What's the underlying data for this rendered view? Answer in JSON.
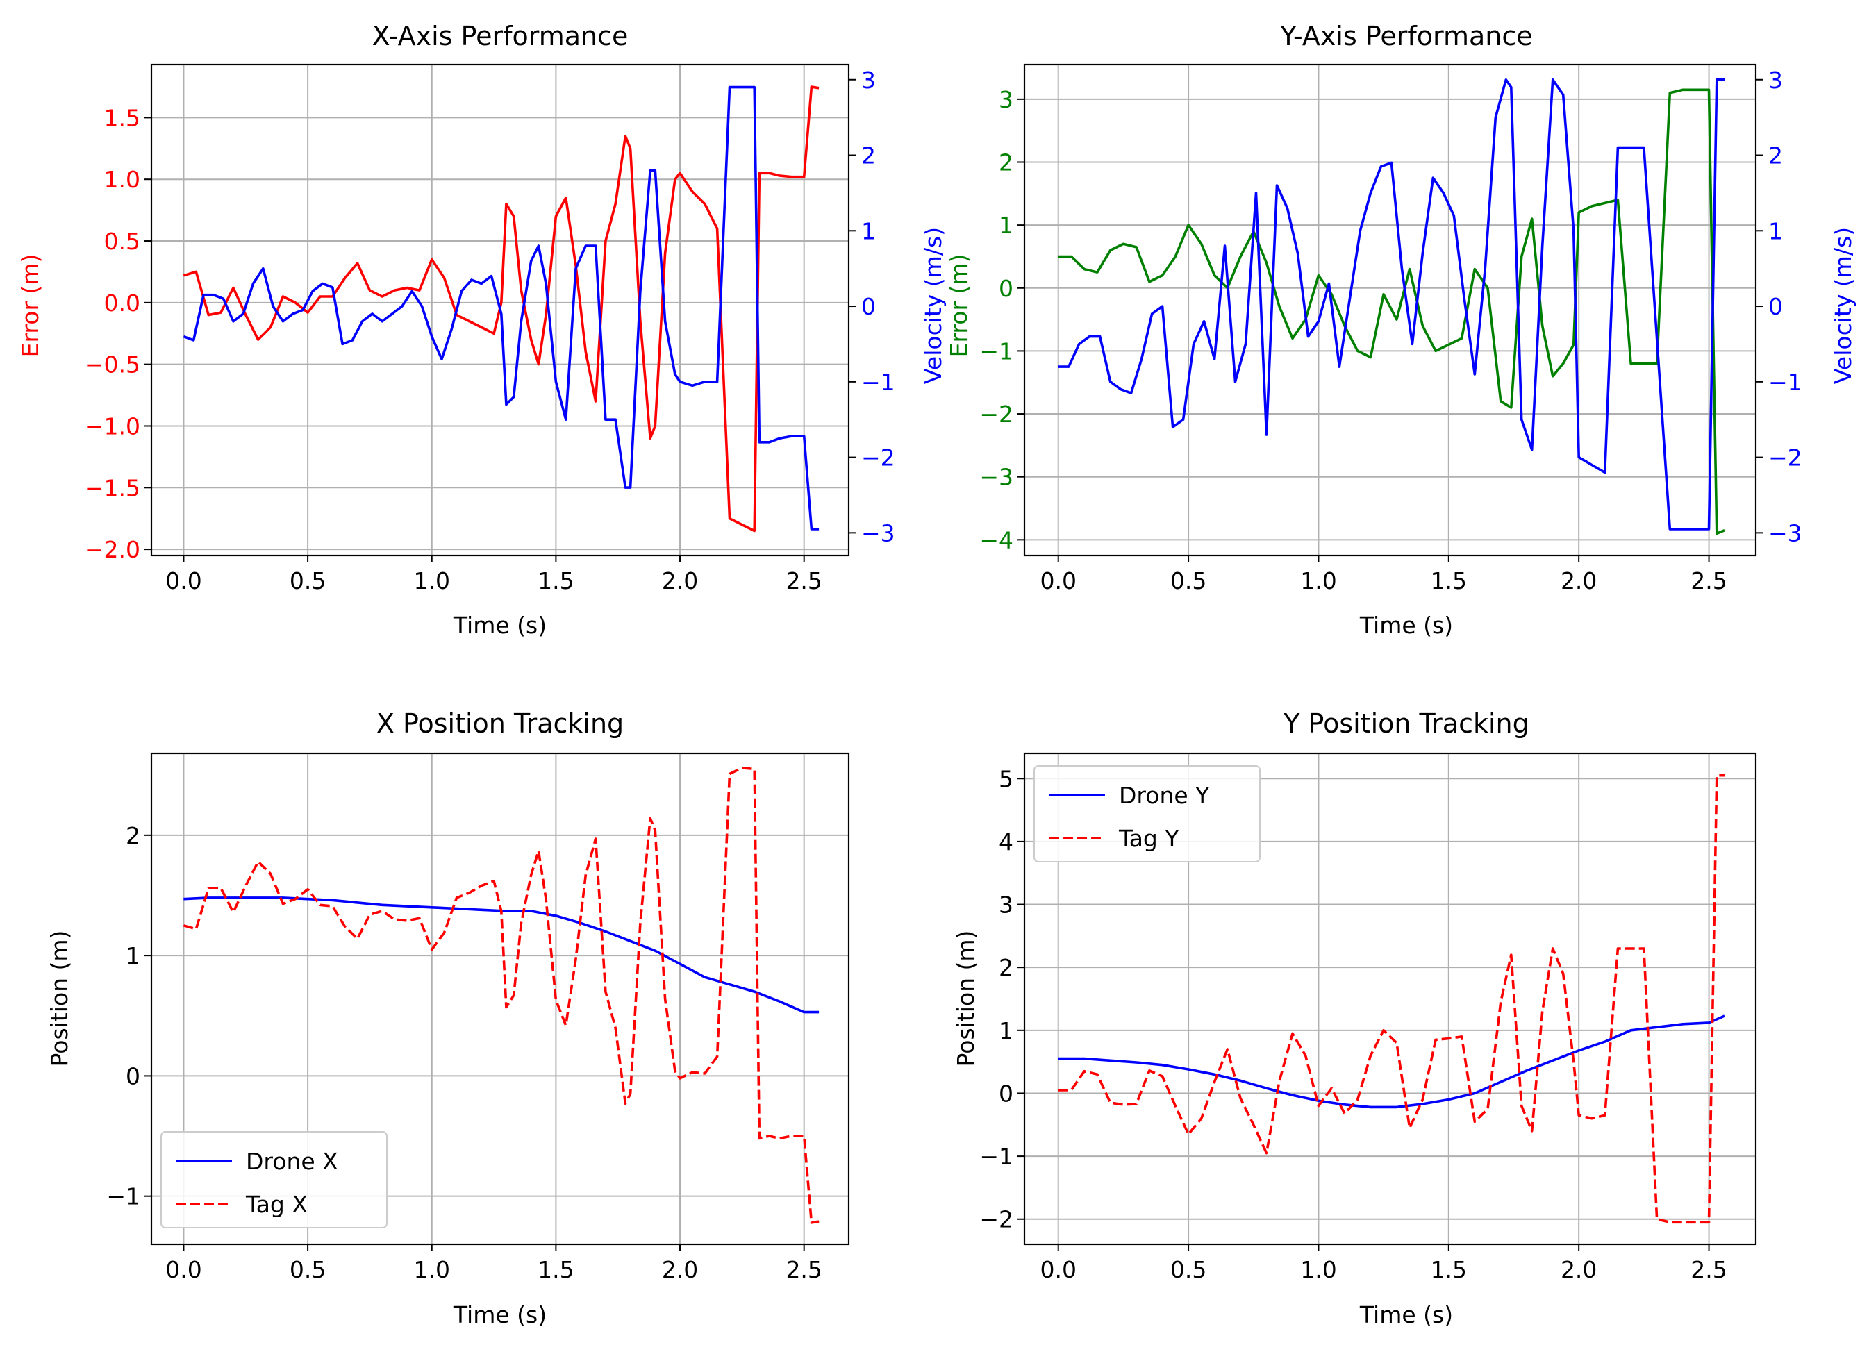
{
  "colors": {
    "red": "#ff0000",
    "blue": "#0000ff",
    "green": "#008000"
  },
  "chart_data": [
    {
      "type": "line",
      "title": "X-Axis Performance",
      "xlabel": "Time (s)",
      "ylabel": "Error (m)",
      "y2label": "Velocity (m/s)",
      "xlim": [
        -0.13,
        2.68
      ],
      "ylim": [
        -2.05,
        1.93
      ],
      "y2lim": [
        -3.3,
        3.2
      ],
      "xticks": [
        "0.0",
        "0.5",
        "1.0",
        "1.5",
        "2.0",
        "2.5"
      ],
      "yticks": [
        "−2.0",
        "−1.5",
        "−1.0",
        "−0.5",
        "0.0",
        "0.5",
        "1.0",
        "1.5"
      ],
      "y2ticks": [
        "−3",
        "−2",
        "−1",
        "0",
        "1",
        "2",
        "3"
      ],
      "grid": true,
      "series": [
        {
          "axis": "left",
          "color": "#ff0000",
          "style": "solid",
          "x": [
            0.0,
            0.05,
            0.1,
            0.15,
            0.2,
            0.25,
            0.3,
            0.35,
            0.4,
            0.45,
            0.5,
            0.55,
            0.6,
            0.65,
            0.7,
            0.75,
            0.8,
            0.85,
            0.9,
            0.95,
            1.0,
            1.05,
            1.1,
            1.15,
            1.2,
            1.25,
            1.28,
            1.3,
            1.33,
            1.36,
            1.4,
            1.43,
            1.46,
            1.5,
            1.54,
            1.58,
            1.62,
            1.66,
            1.7,
            1.74,
            1.78,
            1.8,
            1.84,
            1.88,
            1.9,
            1.94,
            1.98,
            2.0,
            2.05,
            2.1,
            2.15,
            2.2,
            2.25,
            2.3,
            2.32,
            2.36,
            2.4,
            2.45,
            2.5,
            2.53,
            2.56
          ],
          "y": [
            0.22,
            0.25,
            -0.1,
            -0.08,
            0.12,
            -0.1,
            -0.3,
            -0.2,
            0.05,
            0.0,
            -0.08,
            0.05,
            0.05,
            0.2,
            0.32,
            0.1,
            0.05,
            0.1,
            0.12,
            0.1,
            0.35,
            0.2,
            -0.1,
            -0.15,
            -0.2,
            -0.25,
            0.0,
            0.8,
            0.7,
            0.1,
            -0.3,
            -0.5,
            -0.1,
            0.7,
            0.85,
            0.3,
            -0.4,
            -0.8,
            0.5,
            0.8,
            1.35,
            1.25,
            -0.15,
            -1.1,
            -1.0,
            0.4,
            1.0,
            1.05,
            0.9,
            0.8,
            0.6,
            -1.75,
            -1.8,
            -1.85,
            1.05,
            1.05,
            1.03,
            1.02,
            1.02,
            1.75,
            1.74
          ]
        },
        {
          "axis": "right",
          "color": "#0000ff",
          "style": "solid",
          "x": [
            0.0,
            0.04,
            0.08,
            0.12,
            0.16,
            0.2,
            0.24,
            0.28,
            0.32,
            0.36,
            0.4,
            0.44,
            0.48,
            0.52,
            0.56,
            0.6,
            0.64,
            0.68,
            0.72,
            0.76,
            0.8,
            0.84,
            0.88,
            0.92,
            0.96,
            1.0,
            1.04,
            1.08,
            1.12,
            1.16,
            1.2,
            1.24,
            1.28,
            1.3,
            1.33,
            1.36,
            1.4,
            1.43,
            1.46,
            1.5,
            1.54,
            1.58,
            1.62,
            1.66,
            1.7,
            1.74,
            1.78,
            1.8,
            1.84,
            1.88,
            1.9,
            1.94,
            1.98,
            2.0,
            2.05,
            2.1,
            2.15,
            2.2,
            2.25,
            2.3,
            2.32,
            2.36,
            2.4,
            2.45,
            2.5,
            2.53,
            2.56
          ],
          "y": [
            -0.4,
            -0.45,
            0.15,
            0.15,
            0.1,
            -0.2,
            -0.1,
            0.3,
            0.5,
            0.0,
            -0.2,
            -0.1,
            -0.05,
            0.2,
            0.3,
            0.25,
            -0.5,
            -0.45,
            -0.2,
            -0.1,
            -0.2,
            -0.1,
            0.0,
            0.2,
            0.0,
            -0.4,
            -0.7,
            -0.3,
            0.2,
            0.35,
            0.3,
            0.4,
            -0.1,
            -1.3,
            -1.2,
            -0.2,
            0.6,
            0.8,
            0.3,
            -1.0,
            -1.5,
            0.5,
            0.8,
            0.8,
            -1.5,
            -1.5,
            -2.4,
            -2.4,
            0.2,
            1.8,
            1.8,
            -0.2,
            -0.9,
            -1.0,
            -1.05,
            -1.0,
            -1.0,
            2.9,
            2.9,
            2.9,
            -1.8,
            -1.8,
            -1.75,
            -1.72,
            -1.72,
            -2.95,
            -2.95
          ]
        }
      ]
    },
    {
      "type": "line",
      "title": "Y-Axis Performance",
      "xlabel": "Time (s)",
      "ylabel": "Error (m)",
      "y2label": "Velocity (m/s)",
      "xlim": [
        -0.13,
        2.68
      ],
      "ylim": [
        -4.25,
        3.55
      ],
      "y2lim": [
        -3.3,
        3.2
      ],
      "xticks": [
        "0.0",
        "0.5",
        "1.0",
        "1.5",
        "2.0",
        "2.5"
      ],
      "yticks": [
        "−4",
        "−3",
        "−2",
        "−1",
        "0",
        "1",
        "2",
        "3"
      ],
      "y2ticks": [
        "−3",
        "−2",
        "−1",
        "0",
        "1",
        "2",
        "3"
      ],
      "grid": true,
      "series": [
        {
          "axis": "left",
          "color": "#008000",
          "style": "solid",
          "x": [
            0.0,
            0.05,
            0.1,
            0.15,
            0.2,
            0.25,
            0.3,
            0.35,
            0.4,
            0.45,
            0.5,
            0.55,
            0.6,
            0.65,
            0.7,
            0.75,
            0.8,
            0.85,
            0.9,
            0.95,
            1.0,
            1.05,
            1.1,
            1.15,
            1.2,
            1.25,
            1.3,
            1.35,
            1.4,
            1.45,
            1.5,
            1.55,
            1.6,
            1.65,
            1.7,
            1.74,
            1.78,
            1.82,
            1.86,
            1.9,
            1.94,
            1.98,
            2.0,
            2.05,
            2.1,
            2.15,
            2.2,
            2.25,
            2.3,
            2.35,
            2.4,
            2.45,
            2.5,
            2.53,
            2.56
          ],
          "y": [
            0.5,
            0.5,
            0.3,
            0.25,
            0.6,
            0.7,
            0.65,
            0.1,
            0.2,
            0.5,
            1.0,
            0.7,
            0.2,
            0.0,
            0.5,
            0.9,
            0.4,
            -0.3,
            -0.8,
            -0.5,
            0.2,
            -0.1,
            -0.6,
            -1.0,
            -1.1,
            -0.1,
            -0.5,
            0.3,
            -0.6,
            -1.0,
            -0.9,
            -0.8,
            0.3,
            0.0,
            -1.8,
            -1.9,
            0.5,
            1.1,
            -0.6,
            -1.4,
            -1.2,
            -0.9,
            1.2,
            1.3,
            1.35,
            1.4,
            -1.2,
            -1.2,
            -1.2,
            3.1,
            3.15,
            3.15,
            3.15,
            -3.9,
            -3.85
          ]
        },
        {
          "axis": "right",
          "color": "#0000ff",
          "style": "solid",
          "x": [
            0.0,
            0.04,
            0.08,
            0.12,
            0.16,
            0.2,
            0.24,
            0.28,
            0.32,
            0.36,
            0.4,
            0.44,
            0.48,
            0.52,
            0.56,
            0.6,
            0.64,
            0.68,
            0.72,
            0.76,
            0.8,
            0.84,
            0.88,
            0.92,
            0.96,
            1.0,
            1.04,
            1.08,
            1.12,
            1.16,
            1.2,
            1.24,
            1.28,
            1.32,
            1.36,
            1.4,
            1.44,
            1.48,
            1.52,
            1.56,
            1.6,
            1.64,
            1.68,
            1.72,
            1.74,
            1.78,
            1.82,
            1.86,
            1.9,
            1.94,
            1.98,
            2.0,
            2.05,
            2.1,
            2.15,
            2.2,
            2.25,
            2.35,
            2.4,
            2.45,
            2.5,
            2.53,
            2.56
          ],
          "y": [
            -0.8,
            -0.8,
            -0.5,
            -0.4,
            -0.4,
            -1.0,
            -1.1,
            -1.15,
            -0.7,
            -0.1,
            0.0,
            -1.6,
            -1.5,
            -0.5,
            -0.2,
            -0.7,
            0.8,
            -1.0,
            -0.5,
            1.5,
            -1.7,
            1.6,
            1.3,
            0.7,
            -0.4,
            -0.2,
            0.3,
            -0.8,
            0.1,
            1.0,
            1.5,
            1.85,
            1.9,
            0.5,
            -0.5,
            0.7,
            1.7,
            1.5,
            1.2,
            0.1,
            -0.9,
            0.5,
            2.5,
            3.0,
            2.9,
            -1.5,
            -1.9,
            0.8,
            3.0,
            2.8,
            1.0,
            -2.0,
            -2.1,
            -2.2,
            2.1,
            2.1,
            2.1,
            -2.95,
            -2.95,
            -2.95,
            -2.95,
            3.0,
            3.0
          ]
        }
      ]
    },
    {
      "type": "line",
      "title": "X Position Tracking",
      "xlabel": "Time (s)",
      "ylabel": "Position (m)",
      "xlim": [
        -0.13,
        2.68
      ],
      "ylim": [
        -1.4,
        2.68
      ],
      "xticks": [
        "0.0",
        "0.5",
        "1.0",
        "1.5",
        "2.0",
        "2.5"
      ],
      "yticks": [
        "−1",
        "0",
        "1",
        "2"
      ],
      "grid": true,
      "legend": {
        "position": "lower-left",
        "entries": [
          "Drone X",
          "Tag X"
        ]
      },
      "series": [
        {
          "name": "Drone X",
          "color": "#0000ff",
          "style": "solid",
          "x": [
            0.0,
            0.1,
            0.2,
            0.3,
            0.4,
            0.5,
            0.6,
            0.7,
            0.8,
            0.9,
            1.0,
            1.1,
            1.2,
            1.3,
            1.4,
            1.5,
            1.6,
            1.7,
            1.8,
            1.9,
            2.0,
            2.1,
            2.2,
            2.3,
            2.4,
            2.5,
            2.56
          ],
          "y": [
            1.47,
            1.48,
            1.48,
            1.48,
            1.48,
            1.47,
            1.46,
            1.44,
            1.42,
            1.41,
            1.4,
            1.39,
            1.38,
            1.37,
            1.37,
            1.33,
            1.27,
            1.2,
            1.12,
            1.04,
            0.93,
            0.82,
            0.76,
            0.7,
            0.62,
            0.53,
            0.53
          ]
        },
        {
          "name": "Tag X",
          "color": "#ff0000",
          "style": "dashed",
          "x": [
            0.0,
            0.05,
            0.1,
            0.15,
            0.2,
            0.25,
            0.3,
            0.35,
            0.4,
            0.45,
            0.5,
            0.55,
            0.6,
            0.65,
            0.7,
            0.75,
            0.8,
            0.85,
            0.9,
            0.95,
            1.0,
            1.05,
            1.1,
            1.15,
            1.2,
            1.25,
            1.28,
            1.3,
            1.33,
            1.36,
            1.4,
            1.43,
            1.46,
            1.5,
            1.54,
            1.58,
            1.62,
            1.66,
            1.7,
            1.74,
            1.78,
            1.8,
            1.84,
            1.88,
            1.9,
            1.94,
            1.98,
            2.0,
            2.05,
            2.1,
            2.15,
            2.2,
            2.25,
            2.3,
            2.32,
            2.36,
            2.4,
            2.45,
            2.5,
            2.53,
            2.56
          ],
          "y": [
            1.25,
            1.22,
            1.56,
            1.56,
            1.36,
            1.58,
            1.78,
            1.68,
            1.43,
            1.47,
            1.55,
            1.42,
            1.41,
            1.24,
            1.14,
            1.34,
            1.37,
            1.3,
            1.29,
            1.31,
            1.05,
            1.19,
            1.48,
            1.52,
            1.58,
            1.62,
            1.37,
            0.57,
            0.67,
            1.27,
            1.67,
            1.87,
            1.47,
            0.63,
            0.42,
            0.97,
            1.67,
            1.97,
            0.7,
            0.4,
            -0.23,
            -0.15,
            1.27,
            2.14,
            2.04,
            0.64,
            0.04,
            -0.02,
            0.03,
            0.02,
            0.16,
            2.51,
            2.56,
            2.55,
            -0.52,
            -0.5,
            -0.52,
            -0.5,
            -0.5,
            -1.22,
            -1.21
          ]
        }
      ]
    },
    {
      "type": "line",
      "title": "Y Position Tracking",
      "xlabel": "Time (s)",
      "ylabel": "Position (m)",
      "xlim": [
        -0.13,
        2.68
      ],
      "ylim": [
        -2.4,
        5.4
      ],
      "xticks": [
        "0.0",
        "0.5",
        "1.0",
        "1.5",
        "2.0",
        "2.5"
      ],
      "yticks": [
        "−2",
        "−1",
        "0",
        "1",
        "2",
        "3",
        "4",
        "5"
      ],
      "grid": true,
      "legend": {
        "position": "upper-left",
        "entries": [
          "Drone Y",
          "Tag Y"
        ]
      },
      "series": [
        {
          "name": "Drone Y",
          "color": "#0000ff",
          "style": "solid",
          "x": [
            0.0,
            0.1,
            0.2,
            0.3,
            0.4,
            0.5,
            0.6,
            0.7,
            0.8,
            0.9,
            1.0,
            1.1,
            1.2,
            1.3,
            1.4,
            1.5,
            1.6,
            1.7,
            1.8,
            1.9,
            2.0,
            2.1,
            2.2,
            2.3,
            2.4,
            2.5,
            2.56
          ],
          "y": [
            0.55,
            0.55,
            0.52,
            0.49,
            0.45,
            0.38,
            0.3,
            0.2,
            0.08,
            -0.03,
            -0.12,
            -0.18,
            -0.22,
            -0.22,
            -0.17,
            -0.1,
            0.0,
            0.18,
            0.36,
            0.52,
            0.68,
            0.82,
            1.0,
            1.05,
            1.1,
            1.12,
            1.23
          ]
        },
        {
          "name": "Tag Y",
          "color": "#ff0000",
          "style": "dashed",
          "x": [
            0.0,
            0.05,
            0.1,
            0.15,
            0.2,
            0.25,
            0.3,
            0.35,
            0.4,
            0.45,
            0.5,
            0.55,
            0.6,
            0.65,
            0.7,
            0.75,
            0.8,
            0.85,
            0.9,
            0.95,
            1.0,
            1.05,
            1.1,
            1.15,
            1.2,
            1.25,
            1.3,
            1.35,
            1.4,
            1.45,
            1.5,
            1.55,
            1.6,
            1.65,
            1.7,
            1.74,
            1.78,
            1.82,
            1.86,
            1.9,
            1.94,
            1.98,
            2.0,
            2.05,
            2.1,
            2.15,
            2.2,
            2.25,
            2.3,
            2.35,
            2.4,
            2.45,
            2.5,
            2.53,
            2.56
          ],
          "y": [
            0.05,
            0.05,
            0.35,
            0.3,
            -0.15,
            -0.18,
            -0.17,
            0.36,
            0.27,
            -0.2,
            -0.65,
            -0.4,
            0.18,
            0.7,
            -0.08,
            -0.5,
            -0.95,
            0.2,
            0.95,
            0.6,
            -0.2,
            0.08,
            -0.32,
            -0.1,
            0.6,
            1.0,
            0.8,
            -0.55,
            -0.1,
            0.85,
            0.87,
            0.9,
            -0.45,
            -0.25,
            1.45,
            2.2,
            -0.2,
            -0.6,
            1.3,
            2.3,
            1.9,
            0.5,
            -0.35,
            -0.4,
            -0.35,
            2.3,
            2.3,
            2.3,
            -2.0,
            -2.05,
            -2.05,
            -2.05,
            -2.05,
            5.05,
            5.05
          ]
        }
      ]
    }
  ]
}
